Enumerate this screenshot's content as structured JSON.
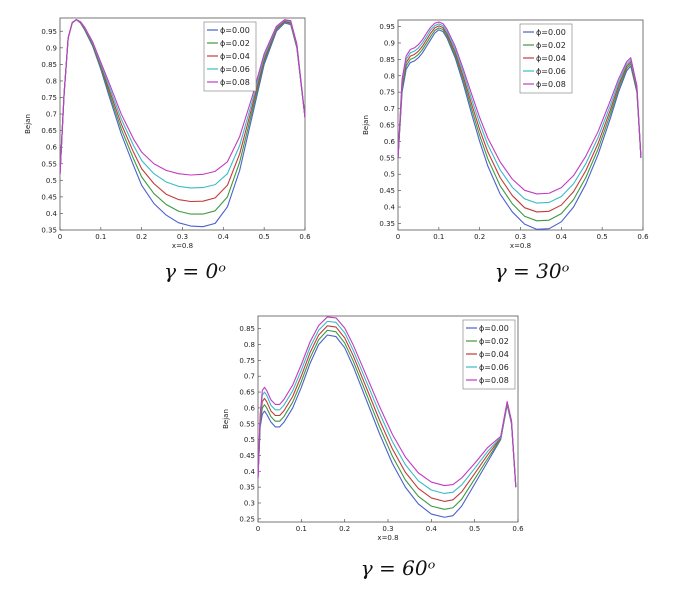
{
  "chart_data": [
    {
      "type": "line",
      "xlabel": "x=0.8",
      "ylabel": "Bejan",
      "caption": "γ = 0ᵒ",
      "xlim": [
        0,
        0.6
      ],
      "ylim": [
        0.35,
        0.99
      ],
      "xticks": [
        "0",
        "0.1",
        "0.2",
        "0.3",
        "0.4",
        "0.5",
        "0.6"
      ],
      "yticks": [
        "0.35",
        "0.4",
        "0.45",
        "0.5",
        "0.55",
        "0.6",
        "0.65",
        "0.7",
        "0.75",
        "0.8",
        "0.85",
        "0.9",
        "0.95"
      ],
      "legend_position": "top-right",
      "x": [
        0,
        0.01,
        0.02,
        0.03,
        0.04,
        0.05,
        0.06,
        0.08,
        0.1,
        0.12,
        0.15,
        0.18,
        0.2,
        0.23,
        0.26,
        0.29,
        0.32,
        0.35,
        0.38,
        0.41,
        0.44,
        0.47,
        0.5,
        0.53,
        0.55,
        0.565,
        0.58,
        0.6
      ],
      "series": [
        {
          "name": "ϕ=0.00",
          "color": "#4a60cc",
          "values": [
            0.52,
            0.76,
            0.93,
            0.975,
            0.985,
            0.975,
            0.955,
            0.905,
            0.835,
            0.755,
            0.64,
            0.545,
            0.485,
            0.43,
            0.395,
            0.372,
            0.362,
            0.36,
            0.37,
            0.42,
            0.53,
            0.69,
            0.85,
            0.95,
            0.975,
            0.97,
            0.9,
            0.69
          ]
        },
        {
          "name": "ϕ=0.02",
          "color": "#3d9a3d",
          "values": [
            0.52,
            0.76,
            0.93,
            0.975,
            0.985,
            0.976,
            0.957,
            0.908,
            0.84,
            0.765,
            0.655,
            0.565,
            0.51,
            0.46,
            0.427,
            0.407,
            0.398,
            0.398,
            0.408,
            0.45,
            0.555,
            0.705,
            0.858,
            0.955,
            0.978,
            0.973,
            0.903,
            0.69
          ]
        },
        {
          "name": "ϕ=0.04",
          "color": "#c33a3a",
          "values": [
            0.52,
            0.76,
            0.93,
            0.976,
            0.985,
            0.977,
            0.959,
            0.912,
            0.845,
            0.775,
            0.67,
            0.585,
            0.535,
            0.49,
            0.458,
            0.442,
            0.436,
            0.437,
            0.447,
            0.485,
            0.58,
            0.72,
            0.866,
            0.958,
            0.98,
            0.976,
            0.906,
            0.69
          ]
        },
        {
          "name": "ϕ=0.06",
          "color": "#38bcc6",
          "values": [
            0.52,
            0.76,
            0.93,
            0.976,
            0.985,
            0.978,
            0.961,
            0.915,
            0.85,
            0.785,
            0.685,
            0.605,
            0.56,
            0.52,
            0.495,
            0.482,
            0.477,
            0.478,
            0.487,
            0.52,
            0.605,
            0.735,
            0.874,
            0.962,
            0.983,
            0.979,
            0.909,
            0.69
          ]
        },
        {
          "name": "ϕ=0.08",
          "color": "#c23bc2",
          "values": [
            0.52,
            0.76,
            0.93,
            0.977,
            0.985,
            0.979,
            0.963,
            0.918,
            0.856,
            0.795,
            0.7,
            0.625,
            0.585,
            0.55,
            0.53,
            0.52,
            0.516,
            0.518,
            0.527,
            0.556,
            0.632,
            0.75,
            0.882,
            0.965,
            0.985,
            0.982,
            0.912,
            0.69
          ]
        }
      ]
    },
    {
      "type": "line",
      "xlabel": "x=0.8",
      "ylabel": "Bejan",
      "caption": "γ = 30ᵒ",
      "xlim": [
        0,
        0.6
      ],
      "ylim": [
        0.33,
        0.97
      ],
      "xticks": [
        "0",
        "0.1",
        "0.2",
        "0.3",
        "0.4",
        "0.5",
        "0.6"
      ],
      "yticks": [
        "0.35",
        "0.4",
        "0.45",
        "0.5",
        "0.55",
        "0.6",
        "0.65",
        "0.7",
        "0.75",
        "0.8",
        "0.85",
        "0.9",
        "0.95"
      ],
      "legend_position": "top-right",
      "x": [
        0,
        0.01,
        0.02,
        0.03,
        0.04,
        0.05,
        0.06,
        0.07,
        0.08,
        0.09,
        0.1,
        0.11,
        0.12,
        0.14,
        0.16,
        0.18,
        0.2,
        0.22,
        0.25,
        0.28,
        0.31,
        0.34,
        0.37,
        0.4,
        0.43,
        0.46,
        0.49,
        0.52,
        0.54,
        0.56,
        0.57,
        0.585,
        0.595
      ],
      "series": [
        {
          "name": "ϕ=0.00",
          "color": "#4a60cc",
          "values": [
            0.55,
            0.75,
            0.82,
            0.84,
            0.845,
            0.855,
            0.87,
            0.89,
            0.91,
            0.93,
            0.94,
            0.935,
            0.915,
            0.855,
            0.775,
            0.685,
            0.6,
            0.525,
            0.44,
            0.385,
            0.348,
            0.332,
            0.334,
            0.355,
            0.4,
            0.47,
            0.56,
            0.67,
            0.75,
            0.815,
            0.83,
            0.75,
            0.55
          ]
        },
        {
          "name": "ϕ=0.02",
          "color": "#3d9a3d",
          "values": [
            0.55,
            0.76,
            0.83,
            0.85,
            0.855,
            0.865,
            0.88,
            0.9,
            0.92,
            0.938,
            0.946,
            0.941,
            0.921,
            0.863,
            0.786,
            0.7,
            0.618,
            0.547,
            0.465,
            0.41,
            0.372,
            0.358,
            0.36,
            0.38,
            0.423,
            0.49,
            0.577,
            0.683,
            0.76,
            0.822,
            0.837,
            0.755,
            0.55
          ]
        },
        {
          "name": "ϕ=0.04",
          "color": "#c33a3a",
          "values": [
            0.55,
            0.77,
            0.84,
            0.86,
            0.865,
            0.875,
            0.89,
            0.91,
            0.93,
            0.946,
            0.952,
            0.947,
            0.928,
            0.872,
            0.797,
            0.715,
            0.636,
            0.568,
            0.49,
            0.435,
            0.398,
            0.385,
            0.387,
            0.406,
            0.447,
            0.511,
            0.594,
            0.696,
            0.77,
            0.829,
            0.843,
            0.76,
            0.55
          ]
        },
        {
          "name": "ϕ=0.06",
          "color": "#38bcc6",
          "values": [
            0.55,
            0.78,
            0.85,
            0.87,
            0.875,
            0.885,
            0.9,
            0.92,
            0.94,
            0.953,
            0.958,
            0.953,
            0.935,
            0.881,
            0.809,
            0.73,
            0.655,
            0.59,
            0.514,
            0.46,
            0.425,
            0.412,
            0.414,
            0.432,
            0.471,
            0.532,
            0.612,
            0.71,
            0.78,
            0.836,
            0.849,
            0.765,
            0.55
          ]
        },
        {
          "name": "ϕ=0.08",
          "color": "#c23bc2",
          "values": [
            0.55,
            0.79,
            0.86,
            0.88,
            0.885,
            0.895,
            0.91,
            0.93,
            0.948,
            0.96,
            0.964,
            0.959,
            0.942,
            0.89,
            0.82,
            0.745,
            0.673,
            0.61,
            0.538,
            0.485,
            0.451,
            0.44,
            0.442,
            0.459,
            0.496,
            0.555,
            0.63,
            0.724,
            0.79,
            0.843,
            0.855,
            0.77,
            0.55
          ]
        }
      ]
    },
    {
      "type": "line",
      "xlabel": "x=0.8",
      "ylabel": "Bejan",
      "caption": "γ = 60ᵒ",
      "xlim": [
        0,
        0.6
      ],
      "ylim": [
        0.24,
        0.89
      ],
      "xticks": [
        "0",
        "0.1",
        "0.2",
        "0.3",
        "0.4",
        "0.5",
        "0.6"
      ],
      "yticks": [
        "0.25",
        "0.3",
        "0.35",
        "0.4",
        "0.45",
        "0.5",
        "0.55",
        "0.6",
        "0.65",
        "0.7",
        "0.75",
        "0.8",
        "0.85"
      ],
      "legend_position": "top-right",
      "x": [
        0,
        0.005,
        0.01,
        0.015,
        0.02,
        0.03,
        0.04,
        0.05,
        0.06,
        0.08,
        0.1,
        0.12,
        0.14,
        0.16,
        0.18,
        0.2,
        0.22,
        0.25,
        0.28,
        0.31,
        0.34,
        0.37,
        0.4,
        0.43,
        0.45,
        0.47,
        0.5,
        0.53,
        0.56,
        0.575,
        0.585,
        0.595
      ],
      "series": [
        {
          "name": "ϕ=0.00",
          "color": "#4a60cc",
          "values": [
            0.38,
            0.54,
            0.58,
            0.59,
            0.58,
            0.555,
            0.54,
            0.54,
            0.555,
            0.6,
            0.665,
            0.74,
            0.8,
            0.83,
            0.825,
            0.79,
            0.73,
            0.625,
            0.52,
            0.425,
            0.35,
            0.297,
            0.265,
            0.255,
            0.26,
            0.29,
            0.36,
            0.43,
            0.5,
            0.61,
            0.55,
            0.35
          ]
        },
        {
          "name": "ϕ=0.02",
          "color": "#3d9a3d",
          "values": [
            0.38,
            0.55,
            0.6,
            0.61,
            0.6,
            0.572,
            0.558,
            0.558,
            0.573,
            0.618,
            0.683,
            0.757,
            0.815,
            0.845,
            0.84,
            0.805,
            0.747,
            0.645,
            0.542,
            0.448,
            0.373,
            0.321,
            0.29,
            0.28,
            0.285,
            0.312,
            0.376,
            0.44,
            0.502,
            0.612,
            0.552,
            0.35
          ]
        },
        {
          "name": "ϕ=0.04",
          "color": "#c33a3a",
          "values": [
            0.38,
            0.56,
            0.62,
            0.63,
            0.62,
            0.59,
            0.576,
            0.576,
            0.591,
            0.636,
            0.701,
            0.774,
            0.83,
            0.859,
            0.855,
            0.821,
            0.764,
            0.664,
            0.563,
            0.471,
            0.397,
            0.346,
            0.316,
            0.305,
            0.31,
            0.335,
            0.393,
            0.452,
            0.505,
            0.615,
            0.555,
            0.35
          ]
        },
        {
          "name": "ϕ=0.06",
          "color": "#38bcc6",
          "values": [
            0.38,
            0.57,
            0.64,
            0.65,
            0.64,
            0.608,
            0.594,
            0.594,
            0.609,
            0.654,
            0.719,
            0.791,
            0.845,
            0.873,
            0.87,
            0.837,
            0.781,
            0.683,
            0.585,
            0.494,
            0.421,
            0.37,
            0.341,
            0.33,
            0.334,
            0.357,
            0.409,
            0.463,
            0.507,
            0.617,
            0.557,
            0.35
          ]
        },
        {
          "name": "ϕ=0.08",
          "color": "#c23bc2",
          "values": [
            0.38,
            0.58,
            0.655,
            0.665,
            0.655,
            0.625,
            0.611,
            0.611,
            0.627,
            0.672,
            0.737,
            0.808,
            0.86,
            0.887,
            0.884,
            0.852,
            0.798,
            0.702,
            0.606,
            0.517,
            0.445,
            0.395,
            0.366,
            0.355,
            0.358,
            0.379,
            0.425,
            0.475,
            0.51,
            0.62,
            0.56,
            0.35
          ]
        }
      ]
    }
  ]
}
